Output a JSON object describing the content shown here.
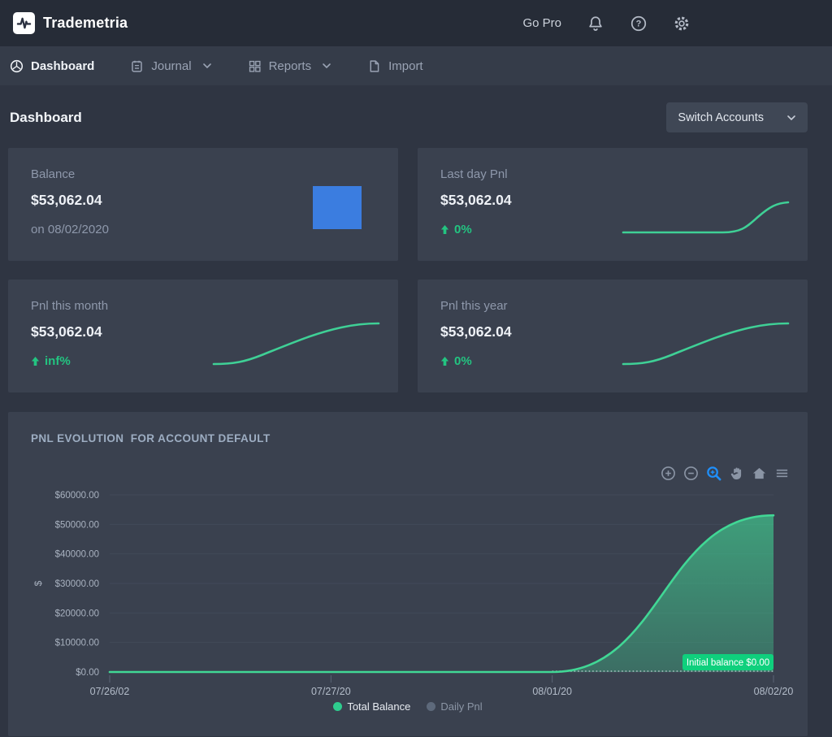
{
  "header": {
    "brand": "Trademetria",
    "go_pro_label": "Go Pro"
  },
  "nav": {
    "items": [
      {
        "label": "Dashboard",
        "icon": "dashboard-icon",
        "active": true,
        "has_dropdown": false
      },
      {
        "label": "Journal",
        "icon": "journal-icon",
        "active": false,
        "has_dropdown": true
      },
      {
        "label": "Reports",
        "icon": "reports-icon",
        "active": false,
        "has_dropdown": true
      },
      {
        "label": "Import",
        "icon": "import-icon",
        "active": false,
        "has_dropdown": false
      }
    ]
  },
  "page": {
    "title": "Dashboard",
    "switch_accounts_label": "Switch Accounts"
  },
  "stat_cards": [
    {
      "label": "Balance",
      "value": "$53,062.04",
      "sub": "on 08/02/2020",
      "visual": "blue-bar"
    },
    {
      "label": "Last day Pnl",
      "value": "$53,062.04",
      "delta": "0%",
      "visual": "sparkline-late-rise"
    },
    {
      "label": "Pnl this month",
      "value": "$53,062.04",
      "delta": "inf%",
      "visual": "sparkline-s"
    },
    {
      "label": "Pnl this year",
      "value": "$53,062.04",
      "delta": "0%",
      "visual": "sparkline-s"
    }
  ],
  "chart": {
    "title": "PNL EVOLUTION  FOR ACCOUNT DEFAULT",
    "toolbar": [
      "zoom-in",
      "zoom-out",
      "selection-zoom",
      "pan",
      "home",
      "menu"
    ]
  },
  "chart_data": {
    "type": "area",
    "title": "PNL EVOLUTION FOR ACCOUNT DEFAULT",
    "x": [
      "07/26/02",
      "07/27/20",
      "08/01/20",
      "08/02/20"
    ],
    "series": [
      {
        "name": "Total Balance",
        "values": [
          0,
          0,
          0,
          53062.04
        ],
        "color": "#41d795",
        "visible": true
      },
      {
        "name": "Daily Pnl",
        "values": null,
        "color": "#5d697b",
        "visible": false
      }
    ],
    "ylabel": "$",
    "ylim": [
      0,
      60000
    ],
    "yticks": [
      "$0.00",
      "$10000.00",
      "$20000.00",
      "$30000.00",
      "$40000.00",
      "$50000.00",
      "$60000.00"
    ],
    "grid": true,
    "legend_position": "bottom",
    "annotation": {
      "text": "Initial balance $0.00",
      "value": 0
    }
  },
  "colors": {
    "page_bg": "#2f3542",
    "header_bg": "#262c37",
    "nav_bg": "#353c49",
    "card_bg": "#3a414f",
    "accent_green": "#23c481",
    "chart_line_green": "#41d795",
    "badge_green": "#0fd07d",
    "blue_bar": "#3b7de0",
    "toolbar_active_blue": "#1f8ffa",
    "grid_line": "#414958"
  }
}
